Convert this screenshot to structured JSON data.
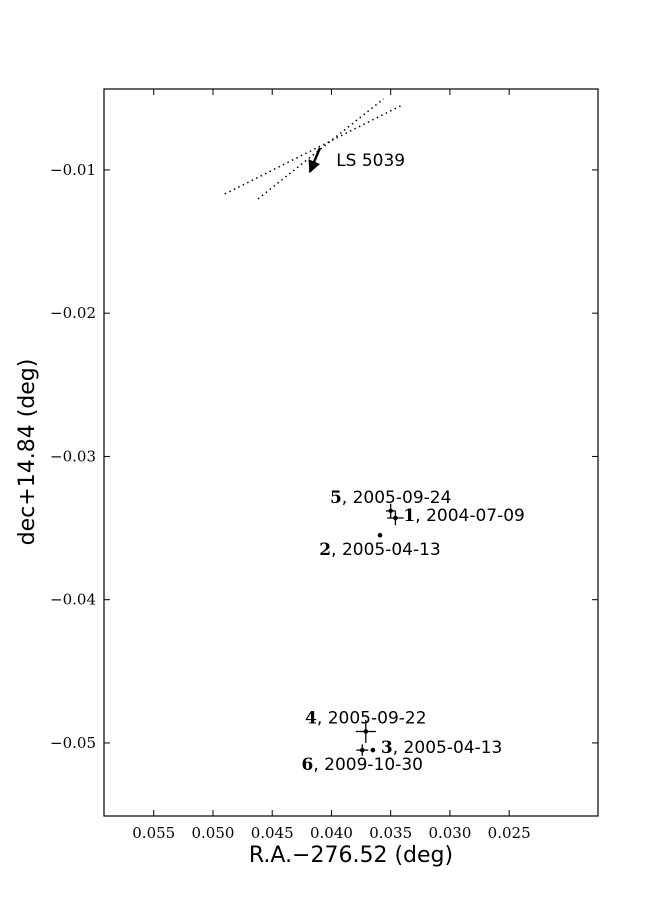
{
  "chart_data": {
    "type": "scatter",
    "xlabel": "R.A.−276.52 (deg)",
    "ylabel": "dec+14.84 (deg)",
    "xlim": [
      0.0592,
      0.0175
    ],
    "ylim": [
      -0.0551,
      -0.00435
    ],
    "xticks": [
      {
        "value": 0.055,
        "label": "0.055"
      },
      {
        "value": 0.05,
        "label": "0.050"
      },
      {
        "value": 0.045,
        "label": "0.045"
      },
      {
        "value": 0.04,
        "label": "0.040"
      },
      {
        "value": 0.035,
        "label": "0.035"
      },
      {
        "value": 0.03,
        "label": "0.030"
      },
      {
        "value": 0.025,
        "label": "0.025"
      }
    ],
    "yticks": [
      {
        "value": -0.01,
        "label": "−0.01"
      },
      {
        "value": -0.02,
        "label": "−0.02"
      },
      {
        "value": -0.03,
        "label": "−0.03"
      },
      {
        "value": -0.04,
        "label": "−0.04"
      },
      {
        "value": -0.05,
        "label": "−0.05"
      }
    ],
    "points": [
      {
        "label": "1",
        "date": ", 2004-07-09",
        "x": 0.0346,
        "y": -0.0343,
        "xerr": 0.0007,
        "yerr": 0.0005,
        "label_position": "right"
      },
      {
        "label": "2",
        "date": ", 2005-04-13",
        "x": 0.0359,
        "y": -0.0355,
        "xerr": null,
        "yerr": null,
        "label_position": "below"
      },
      {
        "label": "3",
        "date": ", 2005-04-13",
        "x": 0.0365,
        "y": -0.0505,
        "xerr": null,
        "yerr": null,
        "label_position": "right"
      },
      {
        "label": "4",
        "date": ", 2005-09-22",
        "x": 0.0371,
        "y": -0.0492,
        "xerr": 0.00085,
        "yerr": 0.0008,
        "label_position": "above"
      },
      {
        "label": "5",
        "date": ", 2005-09-24",
        "x": 0.035,
        "y": -0.0338,
        "xerr": 0.0004,
        "yerr": 0.0005,
        "label_position": "above"
      },
      {
        "label": "6",
        "date": ", 2009-10-30",
        "x": 0.0374,
        "y": -0.0505,
        "xerr": 0.0005,
        "yerr": 0.0004,
        "label_position": "below"
      }
    ],
    "lines": [
      {
        "x": [
          0.049,
          0.034
        ],
        "y": [
          -0.01168,
          -0.00546
        ]
      },
      {
        "x": [
          0.0462,
          0.0356
        ],
        "y": [
          -0.01202,
          -0.00504
        ]
      }
    ],
    "annotation": {
      "text": "LS 5039",
      "xytext": [
        0.04097,
        -0.00846
      ],
      "xy": [
        0.04182,
        -0.01014
      ],
      "textpos": [
        0.0396,
        -0.0093
      ]
    }
  }
}
